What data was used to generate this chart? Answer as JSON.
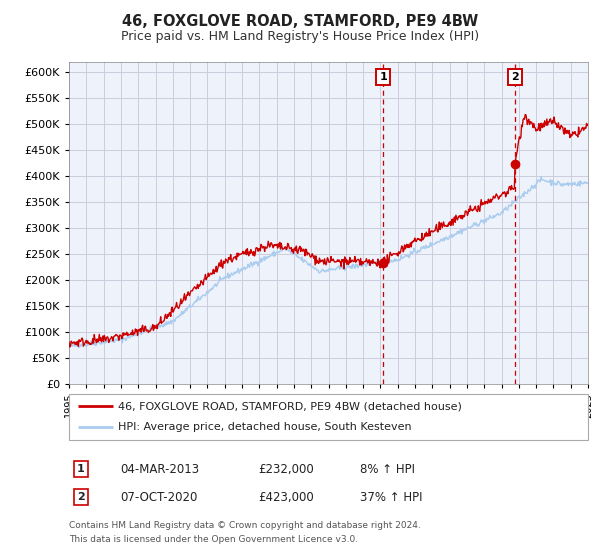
{
  "title": "46, FOXGLOVE ROAD, STAMFORD, PE9 4BW",
  "subtitle": "Price paid vs. HM Land Registry's House Price Index (HPI)",
  "legend_label_red": "46, FOXGLOVE ROAD, STAMFORD, PE9 4BW (detached house)",
  "legend_label_blue": "HPI: Average price, detached house, South Kesteven",
  "annotation1_label": "1",
  "annotation1_date": "04-MAR-2013",
  "annotation1_price": "£232,000",
  "annotation1_hpi": "8% ↑ HPI",
  "annotation1_year": 2013.17,
  "annotation1_value": 232000,
  "annotation2_label": "2",
  "annotation2_date": "07-OCT-2020",
  "annotation2_price": "£423,000",
  "annotation2_hpi": "37% ↑ HPI",
  "annotation2_year": 2020.77,
  "annotation2_value": 423000,
  "ylim": [
    0,
    620000
  ],
  "xlim_start": 1995,
  "xlim_end": 2025,
  "red_color": "#cc0000",
  "blue_color": "#aaccee",
  "grid_color": "#ccccdd",
  "background_color": "#eef2fa",
  "footnote_line1": "Contains HM Land Registry data © Crown copyright and database right 2024.",
  "footnote_line2": "This data is licensed under the Open Government Licence v3.0."
}
